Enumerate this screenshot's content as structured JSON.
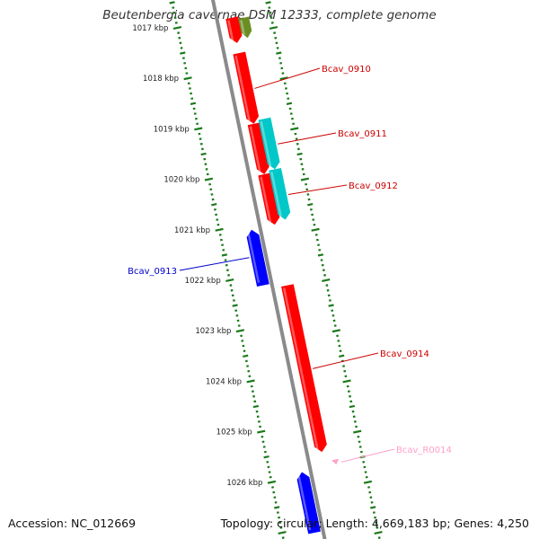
{
  "header": {
    "title": "Beutenbergia cavernae DSM 12333, complete genome"
  },
  "footer": {
    "accession": "Accession: NC_012669",
    "summary": "Topology: circular; Length: 4,669,183 bp; Genes: 4,250"
  },
  "colors": {
    "background": "#ffffff",
    "backbone": "#8a8a8a",
    "ticks": "#1a7a1a",
    "forward_cds": "#ff0000",
    "reverse_cds": "#0000ff",
    "other_feature": "#00c8c8",
    "olive_feature": "#6b8e23",
    "rna": "#ffa0c8"
  },
  "kbp_labels": [
    "1017 kbp",
    "1018 kbp",
    "1019 kbp",
    "1020 kbp",
    "1021 kbp",
    "1022 kbp",
    "1023 kbp",
    "1024 kbp",
    "1025 kbp",
    "1026 kbp"
  ],
  "features": [
    {
      "type": "cds",
      "strand": "+",
      "start": 1016.8,
      "end": 1017.3,
      "label": ""
    },
    {
      "type": "olive",
      "strand": "+",
      "start": 1016.8,
      "end": 1017.2,
      "label": ""
    },
    {
      "type": "cds",
      "strand": "+",
      "start": 1017.5,
      "end": 1018.9,
      "label": "Bcav_0910"
    },
    {
      "type": "cds",
      "strand": "+",
      "start": 1018.9,
      "end": 1019.9,
      "label": ""
    },
    {
      "type": "other",
      "strand": "+",
      "start": 1018.8,
      "end": 1019.8,
      "label": "Bcav_0911"
    },
    {
      "type": "cds",
      "strand": "+",
      "start": 1019.9,
      "end": 1020.9,
      "label": ""
    },
    {
      "type": "other",
      "strand": "+",
      "start": 1019.8,
      "end": 1020.8,
      "label": "Bcav_0912"
    },
    {
      "type": "cds",
      "strand": "-",
      "start": 1021.0,
      "end": 1022.1,
      "label": "Bcav_0913"
    },
    {
      "type": "cds",
      "strand": "+",
      "start": 1022.1,
      "end": 1025.4,
      "label": "Bcav_0914"
    },
    {
      "type": "rna",
      "strand": "+",
      "start": 1025.55,
      "end": 1025.65,
      "label": "Bcav_R0014"
    },
    {
      "type": "cds",
      "strand": "-",
      "start": 1025.8,
      "end": 1027.0,
      "label": ""
    }
  ]
}
